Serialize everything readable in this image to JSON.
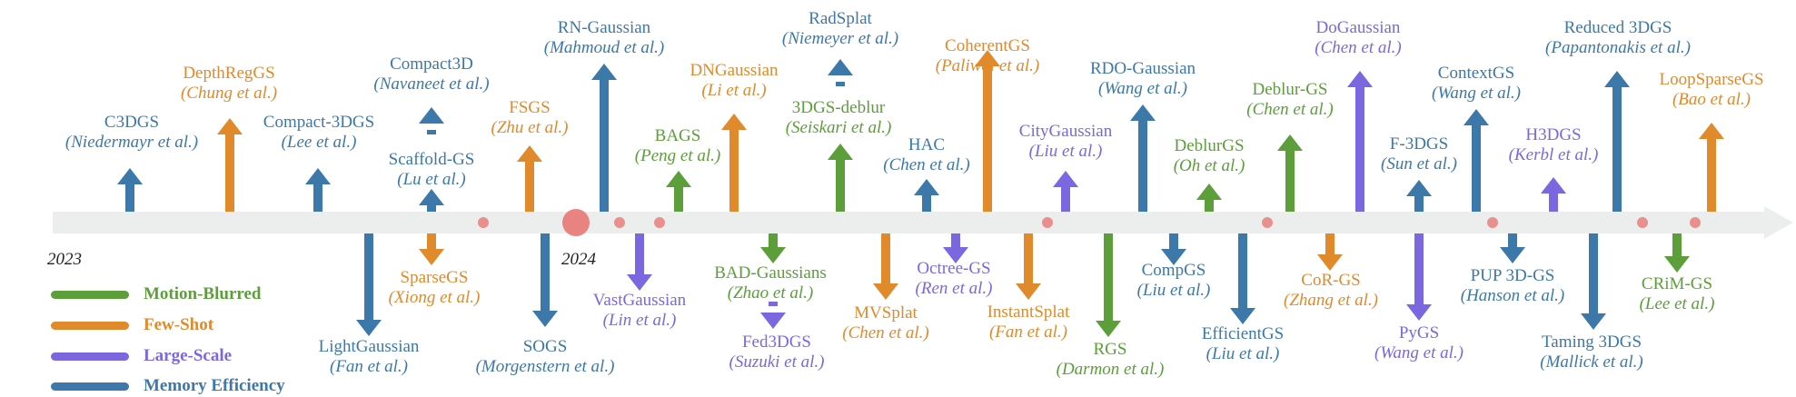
{
  "colors": {
    "motion_blurred": "#5c9e3a",
    "few_shot": "#e08a2c",
    "large_scale": "#7b68e0",
    "memory_efficiency": "#3c78aa",
    "axis": "#eceeee",
    "dot": "#e8706d"
  },
  "years": [
    "2023",
    "2024"
  ],
  "legend": [
    {
      "label": "Motion-Blurred",
      "category": "motion_blurred"
    },
    {
      "label": "Few-Shot",
      "category": "few_shot"
    },
    {
      "label": "Large-Scale",
      "category": "large_scale"
    },
    {
      "label": "Memory Efficiency",
      "category": "memory_efficiency"
    }
  ],
  "methods": [
    {
      "name": "C3DGS",
      "authors": "(Niedermayr et al.)",
      "category": "memory_efficiency",
      "side": "up"
    },
    {
      "name": "DepthRegGS",
      "authors": "(Chung et al.)",
      "category": "few_shot",
      "side": "up"
    },
    {
      "name": "LightGaussian",
      "authors": "(Fan et al.)",
      "category": "memory_efficiency",
      "side": "down"
    },
    {
      "name": "Compact-3DGS",
      "authors": "(Lee et al.)",
      "category": "memory_efficiency",
      "side": "up"
    },
    {
      "name": "Compact3D",
      "authors": "(Navaneet et al.)",
      "category": "memory_efficiency",
      "side": "up"
    },
    {
      "name": "Scaffold-GS",
      "authors": "(Lu et al.)",
      "category": "memory_efficiency",
      "side": "up"
    },
    {
      "name": "SparseGS",
      "authors": "(Xiong et al.)",
      "category": "few_shot",
      "side": "down"
    },
    {
      "name": "FSGS",
      "authors": "(Zhu et al.)",
      "category": "few_shot",
      "side": "up"
    },
    {
      "name": "SOGS",
      "authors": "(Morgenstern et al.)",
      "category": "memory_efficiency",
      "side": "down"
    },
    {
      "name": "RN-Gaussian",
      "authors": "(Mahmoud et al.)",
      "category": "memory_efficiency",
      "side": "up"
    },
    {
      "name": "VastGaussian",
      "authors": "(Lin et al.)",
      "category": "large_scale",
      "side": "down"
    },
    {
      "name": "BAGS",
      "authors": "(Peng et al.)",
      "category": "motion_blurred",
      "side": "up"
    },
    {
      "name": "DNGaussian",
      "authors": "(Li et al.)",
      "category": "few_shot",
      "side": "up"
    },
    {
      "name": "BAD-Gaussians",
      "authors": "(Zhao et al.)",
      "category": "motion_blurred",
      "side": "down"
    },
    {
      "name": "Fed3DGS",
      "authors": "(Suzuki et al.)",
      "category": "large_scale",
      "side": "down"
    },
    {
      "name": "RadSplat",
      "authors": "(Niemeyer et al.)",
      "category": "memory_efficiency",
      "side": "up"
    },
    {
      "name": "3DGS-deblur",
      "authors": "(Seiskari et al.)",
      "category": "motion_blurred",
      "side": "up"
    },
    {
      "name": "MVSplat",
      "authors": "(Chen et al.)",
      "category": "few_shot",
      "side": "down"
    },
    {
      "name": "HAC",
      "authors": "(Chen et al.)",
      "category": "memory_efficiency",
      "side": "up"
    },
    {
      "name": "Octree-GS",
      "authors": "(Ren et al.)",
      "category": "large_scale",
      "side": "down"
    },
    {
      "name": "CoherentGS",
      "authors": "(Paliwal et al.)",
      "category": "few_shot",
      "side": "up"
    },
    {
      "name": "InstantSplat",
      "authors": "(Fan et al.)",
      "category": "few_shot",
      "side": "down"
    },
    {
      "name": "CityGaussian",
      "authors": "(Liu et al.)",
      "category": "large_scale",
      "side": "up"
    },
    {
      "name": "RGS",
      "authors": "(Darmon et al.)",
      "category": "motion_blurred",
      "side": "down"
    },
    {
      "name": "RDO-Gaussian",
      "authors": "(Wang et al.)",
      "category": "memory_efficiency",
      "side": "up"
    },
    {
      "name": "CompGS",
      "authors": "(Liu et al.)",
      "category": "memory_efficiency",
      "side": "down"
    },
    {
      "name": "DeblurGS",
      "authors": "(Oh et al.)",
      "category": "motion_blurred",
      "side": "up"
    },
    {
      "name": "EfficientGS",
      "authors": "(Liu et al.)",
      "category": "memory_efficiency",
      "side": "down"
    },
    {
      "name": "Deblur-GS",
      "authors": "(Chen et al.)",
      "category": "motion_blurred",
      "side": "up"
    },
    {
      "name": "CoR-GS",
      "authors": "(Zhang et al.)",
      "category": "few_shot",
      "side": "down"
    },
    {
      "name": "DoGaussian",
      "authors": "(Chen et al.)",
      "category": "large_scale",
      "side": "up"
    },
    {
      "name": "F-3DGS",
      "authors": "(Sun et al.)",
      "category": "memory_efficiency",
      "side": "up"
    },
    {
      "name": "PyGS",
      "authors": "(Wang et al.)",
      "category": "large_scale",
      "side": "down"
    },
    {
      "name": "ContextGS",
      "authors": "(Wang et al.)",
      "category": "memory_efficiency",
      "side": "up"
    },
    {
      "name": "PUP 3D-GS",
      "authors": "(Hanson et al.)",
      "category": "memory_efficiency",
      "side": "down"
    },
    {
      "name": "H3DGS",
      "authors": "(Kerbl et al.)",
      "category": "large_scale",
      "side": "up"
    },
    {
      "name": "Reduced 3DGS",
      "authors": "(Papantonakis et al.)",
      "category": "memory_efficiency",
      "side": "up"
    },
    {
      "name": "Taming 3DGS",
      "authors": "(Mallick et al.)",
      "category": "memory_efficiency",
      "side": "down"
    },
    {
      "name": "LoopSparseGS",
      "authors": "(Bao et al.)",
      "category": "few_shot",
      "side": "up"
    },
    {
      "name": "CRiM-GS",
      "authors": "(Lee et al.)",
      "category": "motion_blurred",
      "side": "down"
    }
  ]
}
